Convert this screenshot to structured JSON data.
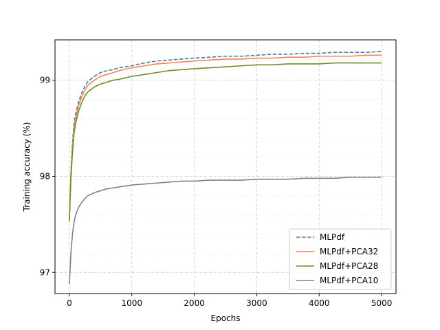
{
  "chart_data": {
    "type": "line",
    "title": "",
    "xlabel": "Epochs",
    "ylabel": "Training accuracy (%)",
    "xlim": [
      -230,
      5230
    ],
    "ylim": [
      96.78,
      99.42
    ],
    "xticks": [
      0,
      1000,
      2000,
      3000,
      4000,
      5000
    ],
    "xtick_labels": [
      "0",
      "1000",
      "2000",
      "3000",
      "4000",
      "5000"
    ],
    "yticks": [
      97,
      98,
      99
    ],
    "ytick_labels": [
      "97",
      "98",
      "99"
    ],
    "grid": true,
    "grid_style": "dashed",
    "legend_position": "lower-right",
    "series": [
      {
        "name": "MLPdf",
        "color": "#3f7fb5",
        "dash": "dashed",
        "x": [
          0,
          25,
          50,
          75,
          100,
          150,
          200,
          250,
          300,
          400,
          500,
          600,
          700,
          800,
          1000,
          1200,
          1400,
          1600,
          1800,
          2000,
          2250,
          2500,
          2750,
          3000,
          3250,
          3500,
          3750,
          4000,
          4250,
          4500,
          4750,
          5000
        ],
        "y": [
          97.55,
          98.05,
          98.35,
          98.55,
          98.65,
          98.78,
          98.87,
          98.94,
          98.99,
          99.04,
          99.08,
          99.1,
          99.11,
          99.13,
          99.15,
          99.18,
          99.2,
          99.21,
          99.22,
          99.23,
          99.24,
          99.25,
          99.25,
          99.26,
          99.27,
          99.27,
          99.28,
          99.28,
          99.29,
          99.29,
          99.29,
          99.3
        ]
      },
      {
        "name": "MLPdf+PCA32",
        "color": "#ff7f50",
        "dash": "solid",
        "x": [
          0,
          25,
          50,
          75,
          100,
          150,
          200,
          250,
          300,
          400,
          500,
          600,
          700,
          800,
          1000,
          1200,
          1400,
          1600,
          1800,
          2000,
          2250,
          2500,
          2750,
          3000,
          3250,
          3500,
          3750,
          4000,
          4250,
          4500,
          4750,
          5000
        ],
        "y": [
          97.55,
          98.02,
          98.3,
          98.5,
          98.6,
          98.74,
          98.83,
          98.9,
          98.95,
          99.0,
          99.04,
          99.06,
          99.08,
          99.1,
          99.13,
          99.15,
          99.17,
          99.18,
          99.19,
          99.2,
          99.21,
          99.22,
          99.22,
          99.23,
          99.23,
          99.24,
          99.24,
          99.25,
          99.25,
          99.25,
          99.26,
          99.26
        ]
      },
      {
        "name": "MLPdf+PCA28",
        "color": "#6b8e23",
        "dash": "solid",
        "x": [
          0,
          25,
          50,
          75,
          100,
          150,
          200,
          250,
          300,
          400,
          500,
          600,
          700,
          800,
          1000,
          1200,
          1400,
          1600,
          1800,
          2000,
          2250,
          2500,
          2750,
          3000,
          3250,
          3500,
          3750,
          4000,
          4250,
          4500,
          4750,
          5000
        ],
        "y": [
          97.53,
          97.98,
          98.25,
          98.45,
          98.55,
          98.68,
          98.77,
          98.84,
          98.88,
          98.93,
          98.96,
          98.98,
          99.0,
          99.01,
          99.04,
          99.06,
          99.08,
          99.1,
          99.11,
          99.12,
          99.13,
          99.14,
          99.15,
          99.16,
          99.16,
          99.17,
          99.17,
          99.17,
          99.18,
          99.18,
          99.18,
          99.18
        ]
      },
      {
        "name": "MLPdf+PCA10",
        "color": "#808080",
        "dash": "solid",
        "x": [
          0,
          25,
          50,
          75,
          100,
          150,
          200,
          250,
          300,
          400,
          500,
          600,
          700,
          800,
          1000,
          1200,
          1400,
          1600,
          1800,
          2000,
          2250,
          2500,
          2750,
          3000,
          3250,
          3500,
          3750,
          4000,
          4250,
          4500,
          4750,
          5000
        ],
        "y": [
          96.88,
          97.2,
          97.4,
          97.52,
          97.6,
          97.68,
          97.73,
          97.77,
          97.8,
          97.83,
          97.85,
          97.87,
          97.88,
          97.89,
          97.91,
          97.92,
          97.93,
          97.94,
          97.95,
          97.95,
          97.96,
          97.96,
          97.96,
          97.97,
          97.97,
          97.97,
          97.98,
          97.98,
          97.98,
          97.99,
          97.99,
          97.99
        ]
      }
    ]
  }
}
